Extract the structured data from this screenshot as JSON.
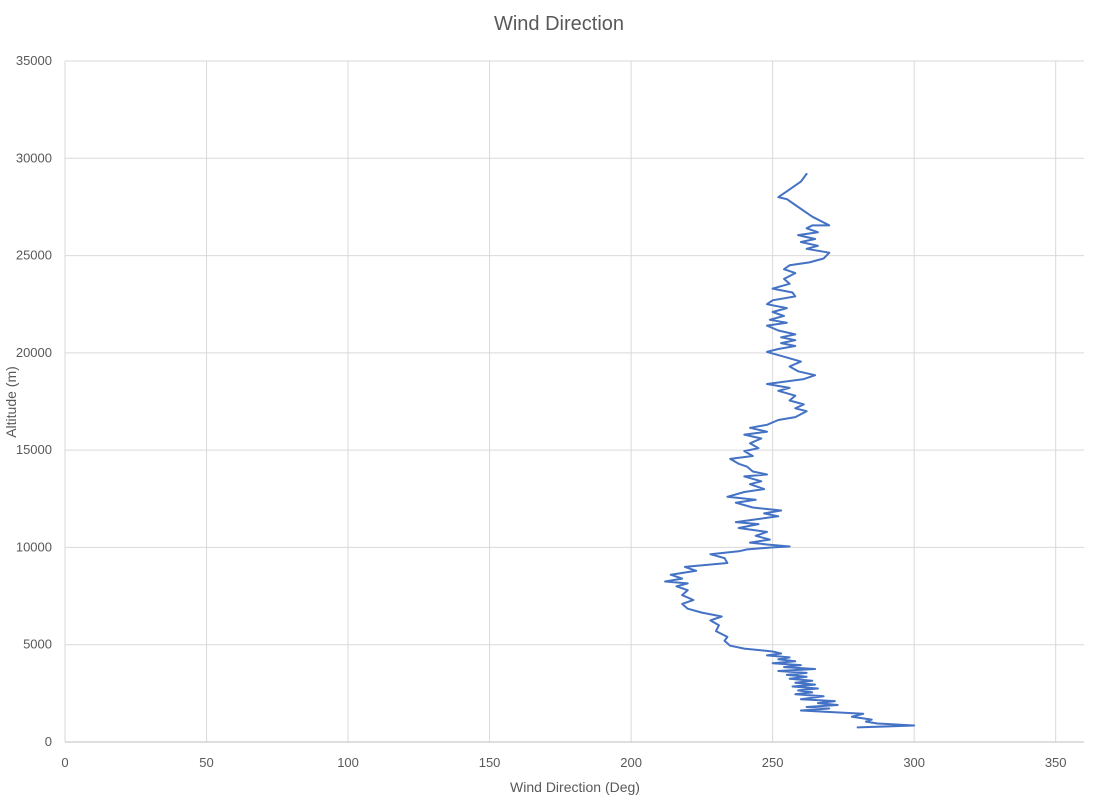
{
  "chart_data": {
    "type": "line",
    "title": "Wind Direction",
    "xlabel": "Wind Direction (Deg)",
    "ylabel": "Altitude (m)",
    "xlim": [
      0,
      360
    ],
    "ylim": [
      0,
      35000
    ],
    "xticks": [
      0,
      50,
      100,
      150,
      200,
      250,
      300,
      350
    ],
    "yticks": [
      0,
      5000,
      10000,
      15000,
      20000,
      25000,
      30000,
      35000
    ],
    "grid": true,
    "legend": "none",
    "series": [
      {
        "color": "#4472c4",
        "points": [
          [
            280,
            750
          ],
          [
            300,
            850
          ],
          [
            287,
            950
          ],
          [
            283,
            1050
          ],
          [
            285,
            1150
          ],
          [
            278,
            1300
          ],
          [
            282,
            1450
          ],
          [
            260,
            1620
          ],
          [
            270,
            1720
          ],
          [
            262,
            1800
          ],
          [
            273,
            1900
          ],
          [
            266,
            2000
          ],
          [
            272,
            2100
          ],
          [
            260,
            2200
          ],
          [
            268,
            2350
          ],
          [
            258,
            2450
          ],
          [
            264,
            2550
          ],
          [
            259,
            2650
          ],
          [
            266,
            2750
          ],
          [
            257,
            2850
          ],
          [
            265,
            2950
          ],
          [
            258,
            3050
          ],
          [
            264,
            3150
          ],
          [
            256,
            3250
          ],
          [
            262,
            3350
          ],
          [
            255,
            3450
          ],
          [
            262,
            3550
          ],
          [
            252,
            3650
          ],
          [
            265,
            3750
          ],
          [
            254,
            3850
          ],
          [
            260,
            3950
          ],
          [
            250,
            4050
          ],
          [
            258,
            4150
          ],
          [
            252,
            4250
          ],
          [
            256,
            4350
          ],
          [
            248,
            4450
          ],
          [
            253,
            4550
          ],
          [
            250,
            4650
          ],
          [
            240,
            4800
          ],
          [
            235,
            4950
          ],
          [
            233,
            5200
          ],
          [
            234,
            5400
          ],
          [
            230,
            5700
          ],
          [
            231,
            6000
          ],
          [
            228,
            6250
          ],
          [
            232,
            6450
          ],
          [
            225,
            6650
          ],
          [
            220,
            6850
          ],
          [
            218,
            7100
          ],
          [
            222,
            7300
          ],
          [
            218,
            7550
          ],
          [
            220,
            7800
          ],
          [
            216,
            8000
          ],
          [
            220,
            8150
          ],
          [
            212,
            8250
          ],
          [
            218,
            8400
          ],
          [
            214,
            8600
          ],
          [
            223,
            8800
          ],
          [
            219,
            9000
          ],
          [
            234,
            9200
          ],
          [
            233,
            9450
          ],
          [
            228,
            9650
          ],
          [
            238,
            9800
          ],
          [
            241,
            9900
          ],
          [
            250,
            10000
          ],
          [
            256,
            10050
          ],
          [
            248,
            10150
          ],
          [
            242,
            10250
          ],
          [
            249,
            10400
          ],
          [
            244,
            10600
          ],
          [
            248,
            10800
          ],
          [
            238,
            11000
          ],
          [
            245,
            11200
          ],
          [
            237,
            11300
          ],
          [
            252,
            11600
          ],
          [
            247,
            11750
          ],
          [
            253,
            11900
          ],
          [
            243,
            12050
          ],
          [
            237,
            12300
          ],
          [
            244,
            12450
          ],
          [
            234,
            12600
          ],
          [
            240,
            12850
          ],
          [
            247,
            13000
          ],
          [
            242,
            13250
          ],
          [
            246,
            13400
          ],
          [
            240,
            13650
          ],
          [
            248,
            13750
          ],
          [
            243,
            13900
          ],
          [
            241,
            14150
          ],
          [
            238,
            14300
          ],
          [
            235,
            14550
          ],
          [
            243,
            14700
          ],
          [
            240,
            14950
          ],
          [
            245,
            15100
          ],
          [
            242,
            15350
          ],
          [
            246,
            15600
          ],
          [
            240,
            15800
          ],
          [
            248,
            15950
          ],
          [
            242,
            16150
          ],
          [
            248,
            16300
          ],
          [
            252,
            16550
          ],
          [
            258,
            16700
          ],
          [
            262,
            17000
          ],
          [
            258,
            17150
          ],
          [
            261,
            17350
          ],
          [
            256,
            17550
          ],
          [
            258,
            17800
          ],
          [
            252,
            18050
          ],
          [
            256,
            18200
          ],
          [
            248,
            18400
          ],
          [
            261,
            18650
          ],
          [
            265,
            18850
          ],
          [
            259,
            19050
          ],
          [
            256,
            19300
          ],
          [
            260,
            19550
          ],
          [
            254,
            19800
          ],
          [
            248,
            20050
          ],
          [
            252,
            20200
          ],
          [
            258,
            20350
          ],
          [
            253,
            20500
          ],
          [
            258,
            20650
          ],
          [
            253,
            20800
          ],
          [
            258,
            20950
          ],
          [
            252,
            21150
          ],
          [
            248,
            21400
          ],
          [
            255,
            21550
          ],
          [
            249,
            21700
          ],
          [
            254,
            21900
          ],
          [
            250,
            22100
          ],
          [
            255,
            22300
          ],
          [
            248,
            22500
          ],
          [
            250,
            22700
          ],
          [
            258,
            22900
          ],
          [
            257,
            23100
          ],
          [
            250,
            23300
          ],
          [
            256,
            23550
          ],
          [
            254,
            23800
          ],
          [
            258,
            24100
          ],
          [
            254,
            24300
          ],
          [
            256,
            24500
          ],
          [
            263,
            24650
          ],
          [
            268,
            24850
          ],
          [
            270,
            25150
          ],
          [
            262,
            25350
          ],
          [
            266,
            25500
          ],
          [
            260,
            25700
          ],
          [
            265,
            25850
          ],
          [
            259,
            26050
          ],
          [
            266,
            26200
          ],
          [
            262,
            26400
          ],
          [
            264,
            26550
          ],
          [
            270,
            26550
          ],
          [
            264,
            27000
          ],
          [
            258,
            27600
          ],
          [
            255,
            27900
          ],
          [
            252,
            28000
          ],
          [
            256,
            28400
          ],
          [
            260,
            28800
          ],
          [
            262,
            29200
          ]
        ]
      }
    ]
  }
}
